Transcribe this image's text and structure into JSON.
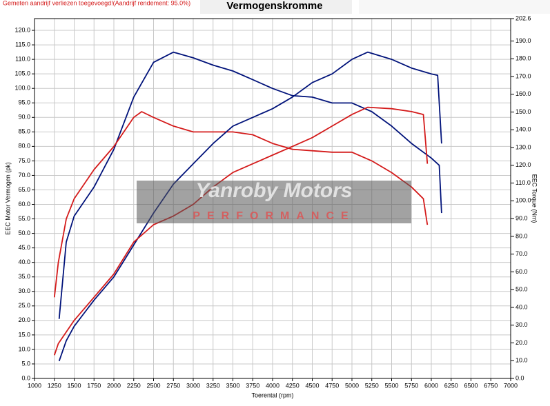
{
  "chart_data": {
    "type": "line",
    "title": "Vermogenskromme",
    "note": "Gemeten aandrijf verliezen toegevoegd!(Aandrijf rendement: 95.0%)",
    "watermark": "Yanroby Motors",
    "watermark_sub": "PERFORMANCE",
    "x_label": "Toerental (rpm)",
    "y_label": "EEC Motor Vermogen (pk)",
    "y2_label": "EEC Torque (Nm)",
    "grid": true,
    "xlim": [
      1000,
      7000
    ],
    "xticks": [
      1000,
      1250,
      1500,
      1750,
      2000,
      2250,
      2500,
      2750,
      3000,
      3250,
      3500,
      3750,
      4000,
      4250,
      4500,
      4750,
      5000,
      5250,
      5500,
      5750,
      6000,
      6250,
      6500,
      6750,
      7000
    ],
    "ylim": [
      0,
      124.05
    ],
    "yticks": [
      {
        "value": 0,
        "label": "0.0"
      },
      {
        "value": 5,
        "label": "5.0"
      },
      {
        "value": 10,
        "label": "10.0"
      },
      {
        "value": 15,
        "label": "15.0"
      },
      {
        "value": 20,
        "label": "20.0"
      },
      {
        "value": 25,
        "label": "25.0"
      },
      {
        "value": 30,
        "label": "30.0"
      },
      {
        "value": 35,
        "label": "35.0"
      },
      {
        "value": 40,
        "label": "40.0"
      },
      {
        "value": 45,
        "label": "45.0"
      },
      {
        "value": 50,
        "label": "50.0"
      },
      {
        "value": 55,
        "label": "55.0"
      },
      {
        "value": 60,
        "label": "60.0"
      },
      {
        "value": 65,
        "label": "65.0"
      },
      {
        "value": 70,
        "label": "70.0"
      },
      {
        "value": 75,
        "label": "75.0"
      },
      {
        "value": 80,
        "label": "80.0"
      },
      {
        "value": 85,
        "label": "85.0"
      },
      {
        "value": 90,
        "label": "90.0"
      },
      {
        "value": 95,
        "label": "95.0"
      },
      {
        "value": 100,
        "label": "100.0"
      },
      {
        "value": 105,
        "label": "105.0"
      },
      {
        "value": 110,
        "label": "110.0"
      },
      {
        "value": 115,
        "label": "115.0"
      },
      {
        "value": 120,
        "label": "120.0"
      }
    ],
    "y2lim": [
      0,
      202.6
    ],
    "y2ticks": [
      {
        "value": 0,
        "label": "0.0"
      },
      {
        "value": 10,
        "label": "10.0"
      },
      {
        "value": 20,
        "label": "20.0"
      },
      {
        "value": 30,
        "label": "30.0"
      },
      {
        "value": 40,
        "label": "40.0"
      },
      {
        "value": 50,
        "label": "50.0"
      },
      {
        "value": 60,
        "label": "60.0"
      },
      {
        "value": 70,
        "label": "70.0"
      },
      {
        "value": 80,
        "label": "80.0"
      },
      {
        "value": 90,
        "label": "90.0"
      },
      {
        "value": 100,
        "label": "100.0"
      },
      {
        "value": 110,
        "label": "110.0"
      },
      {
        "value": 120,
        "label": "120.0"
      },
      {
        "value": 130,
        "label": "130.0"
      },
      {
        "value": 140,
        "label": "140.0"
      },
      {
        "value": 150,
        "label": "150.0"
      },
      {
        "value": 160,
        "label": "160.0"
      },
      {
        "value": 170,
        "label": "170.0"
      },
      {
        "value": 180,
        "label": "180.0"
      },
      {
        "value": 190,
        "label": "190.0"
      },
      202.6
    ],
    "series": [
      {
        "color": "#00127a",
        "axis": "y2",
        "x": [
          1310,
          1400,
          1500,
          1750,
          2000,
          2250,
          2500,
          2750,
          3000,
          3250,
          3500,
          3750,
          4000,
          4250,
          4500,
          4750,
          5000,
          5250,
          5500,
          5750,
          6000,
          6100,
          6130
        ],
        "values": [
          33.5,
          76.8,
          91.4,
          107.8,
          129.0,
          158.4,
          178.0,
          183.7,
          180.5,
          176.4,
          173.1,
          168.2,
          163.3,
          159.2,
          158.4,
          155.1,
          155.1,
          150.2,
          142.1,
          132.3,
          124.1,
          120.0,
          93.1
        ]
      },
      {
        "color": "#d41a1a",
        "axis": "y2",
        "x": [
          1250,
          1300,
          1400,
          1500,
          1750,
          2000,
          2250,
          2350,
          2500,
          2750,
          3000,
          3250,
          3500,
          3750,
          4000,
          4250,
          4500,
          4750,
          5000,
          5250,
          5500,
          5750,
          5900,
          5950
        ],
        "values": [
          45.7,
          65.3,
          89.8,
          101.2,
          117.6,
          130.6,
          147.0,
          150.2,
          147.0,
          142.1,
          138.8,
          138.8,
          138.8,
          137.2,
          132.3,
          129.0,
          128.2,
          127.4,
          127.4,
          122.5,
          115.9,
          107.8,
          101.2,
          86.5
        ]
      },
      {
        "color": "#00127a",
        "x": [
          1310,
          1400,
          1500,
          1750,
          2000,
          2250,
          2500,
          2750,
          3000,
          3250,
          3500,
          3750,
          4000,
          4250,
          4500,
          4750,
          5000,
          5200,
          5500,
          5750,
          6000,
          6080,
          6130
        ],
        "values": [
          6,
          13,
          18,
          27,
          35,
          46,
          57,
          67,
          74,
          81,
          87,
          90,
          93,
          97,
          102,
          105,
          110,
          112.5,
          110,
          107,
          105,
          104.5,
          81
        ]
      },
      {
        "color": "#d41a1a",
        "x": [
          1250,
          1300,
          1500,
          1750,
          2000,
          2250,
          2500,
          2750,
          3000,
          3250,
          3500,
          3750,
          4000,
          4250,
          4500,
          4750,
          5000,
          5200,
          5500,
          5750,
          5900,
          5950
        ],
        "values": [
          8,
          12,
          20,
          28,
          36,
          47,
          53,
          56,
          60,
          66,
          71,
          74,
          77,
          80,
          83,
          87,
          91,
          93.5,
          93,
          92,
          91,
          74
        ]
      }
    ]
  }
}
